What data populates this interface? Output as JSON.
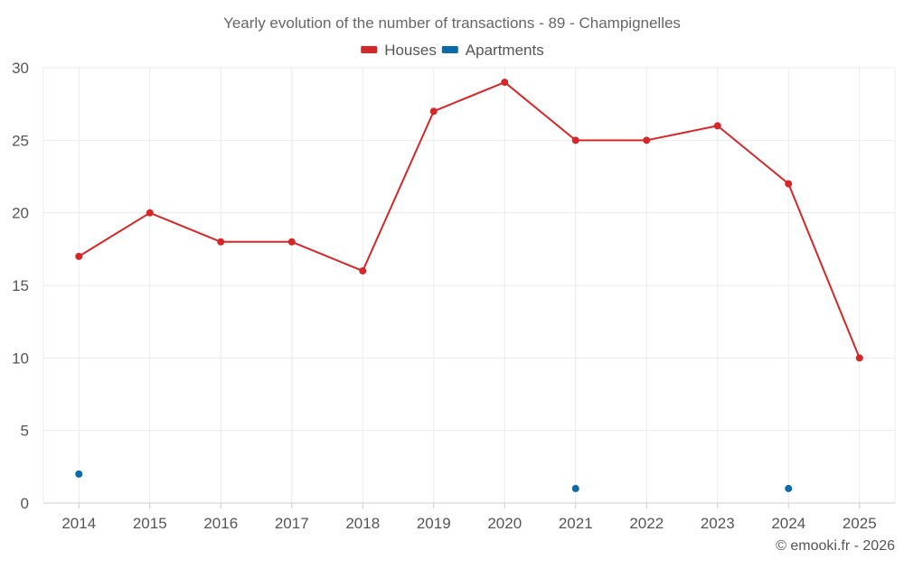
{
  "chart_data": {
    "type": "line",
    "title": "Yearly evolution of the number of transactions - 89 - Champignelles",
    "xlabel": "",
    "ylabel": "",
    "categories": [
      "2014",
      "2015",
      "2016",
      "2017",
      "2018",
      "2019",
      "2020",
      "2021",
      "2022",
      "2023",
      "2024",
      "2025"
    ],
    "ylim": [
      0,
      30
    ],
    "yticks": [
      0,
      5,
      10,
      15,
      20,
      25,
      30
    ],
    "grid": true,
    "legend_position": "top-center",
    "series": [
      {
        "name": "Houses",
        "color": "#d62728",
        "values": [
          17,
          20,
          18,
          18,
          16,
          27,
          29,
          25,
          25,
          26,
          22,
          10
        ]
      },
      {
        "name": "Apartments",
        "color": "#0b6aa8",
        "values": [
          2,
          null,
          null,
          null,
          null,
          null,
          null,
          1,
          null,
          null,
          1,
          null
        ]
      }
    ]
  },
  "credit": "© emooki.fr - 2026"
}
